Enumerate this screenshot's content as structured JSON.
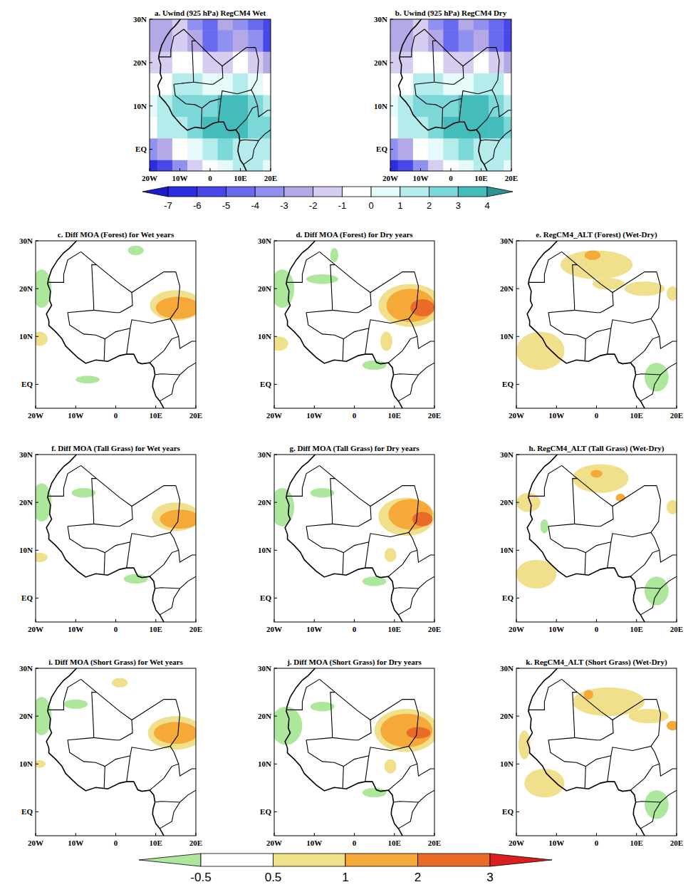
{
  "chart_data": {
    "type": "map",
    "xlim": [
      -20,
      20
    ],
    "ylim": [
      -5,
      30
    ],
    "xticks": [
      {
        "value": -20,
        "label": "20W"
      },
      {
        "value": -10,
        "label": "10W"
      },
      0,
      {
        "value": 10,
        "label": "10E"
      },
      {
        "value": 20,
        "label": "20E"
      }
    ],
    "yticks": [
      {
        "value": 0,
        "label": "EQ"
      },
      {
        "value": 10,
        "label": "10N"
      },
      {
        "value": 20,
        "label": "20N"
      },
      {
        "value": 30,
        "label": "30N"
      }
    ],
    "colorbars": [
      {
        "ticks": [
          -7,
          -6,
          -5,
          -4,
          -3,
          -2,
          -1,
          0,
          1,
          2,
          3,
          4
        ],
        "colors": [
          "#1c1ccc",
          "#2c2ce0",
          "#4848e8",
          "#6a6aee",
          "#9090f0",
          "#b4a8e6",
          "#d6cdf0",
          "#ffffff",
          "#e6fafa",
          "#b4ecec",
          "#7cd8d8",
          "#44bcbc",
          "#2a9494"
        ]
      },
      {
        "ticks": [
          -0.5,
          0.5,
          1,
          2,
          3
        ],
        "colors": [
          "#ade79c",
          "#ffffff",
          "#f0e08c",
          "#f5a938",
          "#ea6a28",
          "#d8201e"
        ]
      }
    ],
    "panels": [
      {
        "type": "heatmap",
        "title": "a. Uwind (925 hPa) RegCM4 Wet",
        "colorbar": 0,
        "lons": [
          -20,
          -15,
          -10,
          -5,
          0,
          5,
          10,
          15,
          20
        ],
        "lats": [
          30,
          25,
          20,
          15,
          10,
          5,
          0,
          -5
        ],
        "cells": [
          [
            -3,
            -3,
            -2,
            -4,
            -5,
            -3,
            -4,
            -5,
            -6
          ],
          [
            -3,
            -3,
            -2,
            -3,
            -5,
            -4,
            -3,
            -4,
            -6
          ],
          [
            -2,
            -2,
            -1,
            -1,
            -2,
            -2,
            -1,
            -2,
            -3
          ],
          [
            -1,
            -1,
            1,
            1,
            0,
            0,
            1,
            0,
            -1
          ],
          [
            0,
            1,
            2,
            2,
            2,
            3,
            3,
            2,
            1
          ],
          [
            -1,
            1,
            1,
            2,
            3,
            3,
            3,
            2,
            2
          ],
          [
            -4,
            -3,
            -1,
            0,
            1,
            2,
            1,
            1,
            1
          ],
          [
            -7,
            -6,
            -4,
            -2,
            -1,
            0,
            1,
            1,
            0
          ]
        ]
      },
      {
        "type": "heatmap",
        "title": "b. Uwind (925 hPa) RegCM4 Dry",
        "colorbar": 0,
        "lons": [
          -20,
          -15,
          -10,
          -5,
          0,
          5,
          10,
          15,
          20
        ],
        "lats": [
          30,
          25,
          20,
          15,
          10,
          5,
          0,
          -5
        ],
        "cells": [
          [
            -3,
            -3,
            -2,
            -4,
            -5,
            -3,
            -4,
            -5,
            -6
          ],
          [
            -3,
            -3,
            -2,
            -3,
            -5,
            -4,
            -3,
            -5,
            -6
          ],
          [
            -2,
            -2,
            -1,
            -1,
            -2,
            -2,
            -1,
            -2,
            -3
          ],
          [
            -1,
            -1,
            1,
            1,
            0,
            0,
            1,
            1,
            -1
          ],
          [
            0,
            1,
            2,
            2,
            2,
            3,
            3,
            2,
            1
          ],
          [
            -1,
            1,
            1,
            2,
            3,
            3,
            3,
            3,
            2
          ],
          [
            -4,
            -3,
            -1,
            0,
            1,
            2,
            1,
            1,
            1
          ],
          [
            -7,
            -6,
            -4,
            -2,
            -1,
            0,
            1,
            1,
            0
          ]
        ]
      },
      {
        "type": "regions",
        "title": "c. Diff MOA (Forest) for Wet years",
        "colorbar": 1,
        "regions": [
          {
            "lon": -18.5,
            "lat": 20,
            "rx": 2.5,
            "ry": 4,
            "value": -0.7
          },
          {
            "lon": -19,
            "lat": 9.5,
            "rx": 2,
            "ry": 1.5,
            "value": 0.7
          },
          {
            "lon": 15,
            "lat": 16.5,
            "rx": 6.5,
            "ry": 3.2,
            "value": 0.7
          },
          {
            "lon": 15.5,
            "lat": 16,
            "rx": 5.5,
            "ry": 2.3,
            "value": 1.5
          },
          {
            "lon": -7,
            "lat": 1,
            "rx": 3,
            "ry": 0.8,
            "value": -0.7
          },
          {
            "lon": 5,
            "lat": 28,
            "rx": 2,
            "ry": 1,
            "value": -0.7
          }
        ]
      },
      {
        "type": "regions",
        "title": "d. Diff MOA (Forest) for Dry years",
        "colorbar": 1,
        "regions": [
          {
            "lon": -18,
            "lat": 20,
            "rx": 3,
            "ry": 4,
            "value": -0.7
          },
          {
            "lon": -19,
            "lat": 8.5,
            "rx": 2.5,
            "ry": 1.5,
            "value": 0.7
          },
          {
            "lon": 14,
            "lat": 16.5,
            "rx": 8,
            "ry": 4.5,
            "value": 0.7
          },
          {
            "lon": 14,
            "lat": 16.5,
            "rx": 6,
            "ry": 3.5,
            "value": 1.5
          },
          {
            "lon": 17,
            "lat": 16,
            "rx": 3,
            "ry": 1.8,
            "value": 2.5
          },
          {
            "lon": -5,
            "lat": 27,
            "rx": 1,
            "ry": 1.5,
            "value": -0.7
          },
          {
            "lon": -8,
            "lat": 22,
            "rx": 4,
            "ry": 1,
            "value": -0.7
          },
          {
            "lon": 5,
            "lat": 4,
            "rx": 3,
            "ry": 1,
            "value": -0.7
          },
          {
            "lon": 8,
            "lat": 9,
            "rx": 1.5,
            "ry": 2,
            "value": 0.7
          }
        ]
      },
      {
        "type": "regions",
        "title": "e. RegCM4_ALT (Forest) (Wet-Dry)",
        "colorbar": 1,
        "regions": [
          {
            "lon": 0,
            "lat": 25,
            "rx": 9,
            "ry": 3,
            "value": 0.7
          },
          {
            "lon": -1,
            "lat": 27,
            "rx": 2,
            "ry": 1,
            "value": 1.5
          },
          {
            "lon": 12,
            "lat": 20,
            "rx": 5,
            "ry": 1.5,
            "value": 0.7
          },
          {
            "lon": 19,
            "lat": 19,
            "rx": 1.5,
            "ry": 1.5,
            "value": 0.7
          },
          {
            "lon": -14,
            "lat": 7,
            "rx": 6,
            "ry": 4,
            "value": 0.7
          },
          {
            "lon": 15,
            "lat": 1.5,
            "rx": 3,
            "ry": 3,
            "value": -0.7
          },
          {
            "lon": 3,
            "lat": 21,
            "rx": 4,
            "ry": 1.2,
            "value": 0.7
          }
        ]
      },
      {
        "type": "regions",
        "title": "f. Diff MOA (Tall Grass) for Wet years",
        "colorbar": 1,
        "regions": [
          {
            "lon": -18.5,
            "lat": 20,
            "rx": 2.5,
            "ry": 4,
            "value": -0.7
          },
          {
            "lon": -19,
            "lat": 8.5,
            "rx": 2,
            "ry": 1,
            "value": 0.7
          },
          {
            "lon": 15,
            "lat": 17,
            "rx": 6,
            "ry": 3,
            "value": 0.7
          },
          {
            "lon": 16,
            "lat": 16.5,
            "rx": 5,
            "ry": 2,
            "value": 1.5
          },
          {
            "lon": -8,
            "lat": 22,
            "rx": 3,
            "ry": 1,
            "value": -0.7
          },
          {
            "lon": 5,
            "lat": 4,
            "rx": 3,
            "ry": 1,
            "value": -0.7
          }
        ]
      },
      {
        "type": "regions",
        "title": "g. Diff MOA (Tall Grass) for Dry years",
        "colorbar": 1,
        "regions": [
          {
            "lon": -18,
            "lat": 19,
            "rx": 3,
            "ry": 4,
            "value": -0.7
          },
          {
            "lon": 13,
            "lat": 17,
            "rx": 7,
            "ry": 4,
            "value": 0.7
          },
          {
            "lon": 14,
            "lat": 17.5,
            "rx": 5.5,
            "ry": 3.2,
            "value": 1.5
          },
          {
            "lon": 17,
            "lat": 16.5,
            "rx": 2.5,
            "ry": 1.5,
            "value": 2.5
          },
          {
            "lon": -8,
            "lat": 22,
            "rx": 3,
            "ry": 1,
            "value": -0.7
          },
          {
            "lon": 5,
            "lat": 3.5,
            "rx": 3,
            "ry": 1,
            "value": -0.7
          },
          {
            "lon": 9,
            "lat": 9,
            "rx": 1.5,
            "ry": 1.5,
            "value": 0.7
          }
        ]
      },
      {
        "type": "regions",
        "title": "h. RegCM4_ALT (Tall Grass) (Wet-Dry)",
        "colorbar": 1,
        "regions": [
          {
            "lon": 1,
            "lat": 25,
            "rx": 7,
            "ry": 3,
            "value": 0.7
          },
          {
            "lon": 0,
            "lat": 26,
            "rx": 1.5,
            "ry": 0.8,
            "value": 1.5
          },
          {
            "lon": 6,
            "lat": 21,
            "rx": 1.2,
            "ry": 0.8,
            "value": 1.5
          },
          {
            "lon": 19,
            "lat": 19,
            "rx": 1.5,
            "ry": 1.5,
            "value": 0.7
          },
          {
            "lon": -15,
            "lat": 5,
            "rx": 5,
            "ry": 3,
            "value": 0.7
          },
          {
            "lon": -17,
            "lat": 20,
            "rx": 3,
            "ry": 2,
            "value": 0.7
          },
          {
            "lon": 15,
            "lat": 1.5,
            "rx": 3,
            "ry": 3,
            "value": -0.7
          },
          {
            "lon": -13,
            "lat": 15,
            "rx": 1,
            "ry": 1.5,
            "value": -0.7
          }
        ]
      },
      {
        "type": "regions",
        "title": "i. Diff MOA (Short Grass) for Wet years",
        "colorbar": 1,
        "regions": [
          {
            "lon": -18.5,
            "lat": 20,
            "rx": 2.5,
            "ry": 4,
            "value": -0.7
          },
          {
            "lon": 15,
            "lat": 16.5,
            "rx": 7,
            "ry": 3.5,
            "value": 0.7
          },
          {
            "lon": 15,
            "lat": 16.5,
            "rx": 5.5,
            "ry": 2.3,
            "value": 1.5
          },
          {
            "lon": -19,
            "lat": 10,
            "rx": 1.5,
            "ry": 0.8,
            "value": 0.7
          },
          {
            "lon": -10,
            "lat": 22.5,
            "rx": 3,
            "ry": 1,
            "value": -0.7
          },
          {
            "lon": 1,
            "lat": 27,
            "rx": 2,
            "ry": 1,
            "value": 0.7
          }
        ]
      },
      {
        "type": "regions",
        "title": "j. Diff MOA (Short Grass) for Dry years",
        "colorbar": 1,
        "regions": [
          {
            "lon": -17,
            "lat": 18,
            "rx": 4,
            "ry": 4,
            "value": -0.7
          },
          {
            "lon": 13,
            "lat": 17,
            "rx": 8,
            "ry": 4.5,
            "value": 0.7
          },
          {
            "lon": 13,
            "lat": 17,
            "rx": 6.5,
            "ry": 3.5,
            "value": 1.5
          },
          {
            "lon": 16,
            "lat": 16.5,
            "rx": 3,
            "ry": 1.2,
            "value": 2.5
          },
          {
            "lon": 5,
            "lat": 4,
            "rx": 3,
            "ry": 1,
            "value": -0.7
          },
          {
            "lon": 9,
            "lat": 9.5,
            "rx": 1.5,
            "ry": 1.5,
            "value": 0.7
          },
          {
            "lon": -8,
            "lat": 22,
            "rx": 3,
            "ry": 1,
            "value": -0.7
          }
        ]
      },
      {
        "type": "regions",
        "title": "k. RegCM4_ALT (Short Grass) (Wet-Dry)",
        "colorbar": 1,
        "regions": [
          {
            "lon": 3,
            "lat": 23,
            "rx": 9,
            "ry": 3,
            "value": 0.7
          },
          {
            "lon": -2,
            "lat": 24.5,
            "rx": 1.2,
            "ry": 1,
            "value": 1.5
          },
          {
            "lon": 13,
            "lat": 20,
            "rx": 5,
            "ry": 1.5,
            "value": 0.7
          },
          {
            "lon": 19,
            "lat": 18,
            "rx": 1.5,
            "ry": 1,
            "value": 1.5
          },
          {
            "lon": -13,
            "lat": 6,
            "rx": 5,
            "ry": 3,
            "value": 0.7
          },
          {
            "lon": -18,
            "lat": 14,
            "rx": 1.5,
            "ry": 3,
            "value": 0.7
          },
          {
            "lon": 15,
            "lat": 1.5,
            "rx": 3,
            "ry": 3,
            "value": -0.7
          }
        ]
      }
    ]
  }
}
